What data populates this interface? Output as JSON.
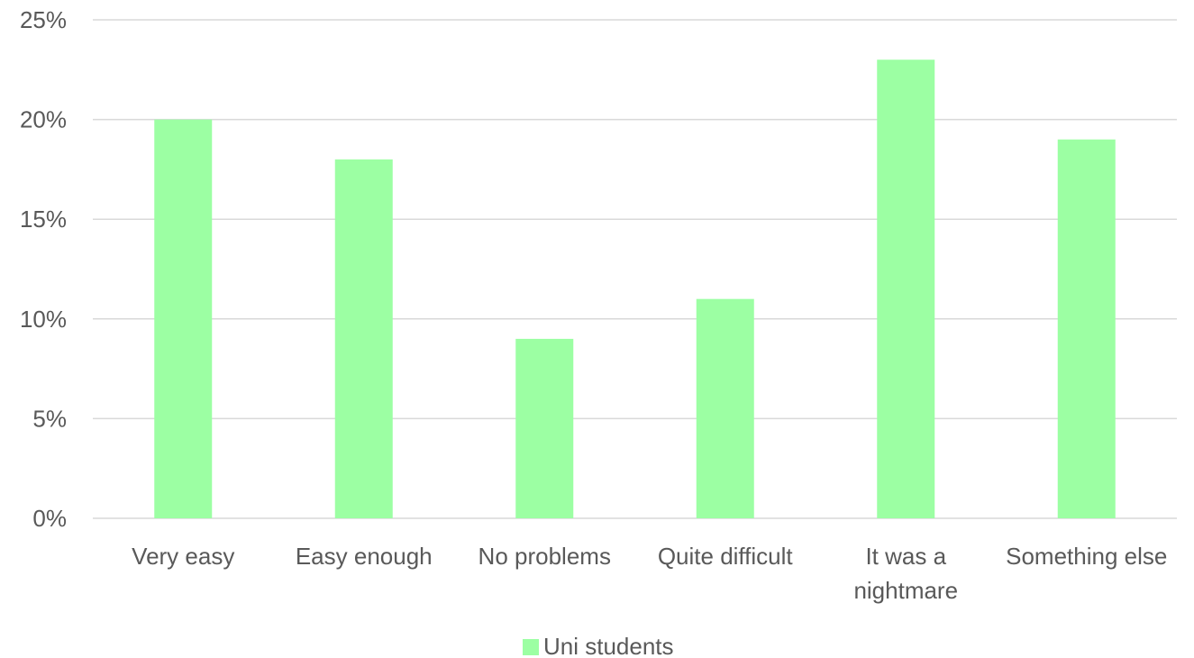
{
  "chart_data": {
    "type": "bar",
    "categories": [
      "Very easy",
      "Easy enough",
      "No problems",
      "Quite difficult",
      "It was a nightmare",
      "Something else"
    ],
    "category_lines": [
      [
        "Very easy"
      ],
      [
        "Easy enough"
      ],
      [
        "No problems"
      ],
      [
        "Quite difficult"
      ],
      [
        "It was a",
        "nightmare"
      ],
      [
        "Something else"
      ]
    ],
    "series": [
      {
        "name": "Uni students",
        "values": [
          20,
          18,
          9,
          11,
          23,
          19
        ],
        "color": "#9cffa3"
      }
    ],
    "yticks": [
      0,
      5,
      10,
      15,
      20,
      25
    ],
    "ytick_suffix": "%",
    "ylim": [
      0,
      25
    ],
    "grid": true,
    "gridline_color": "#d9d9d9",
    "legend_position": "bottom-center",
    "title": "",
    "xlabel": "",
    "ylabel": ""
  }
}
